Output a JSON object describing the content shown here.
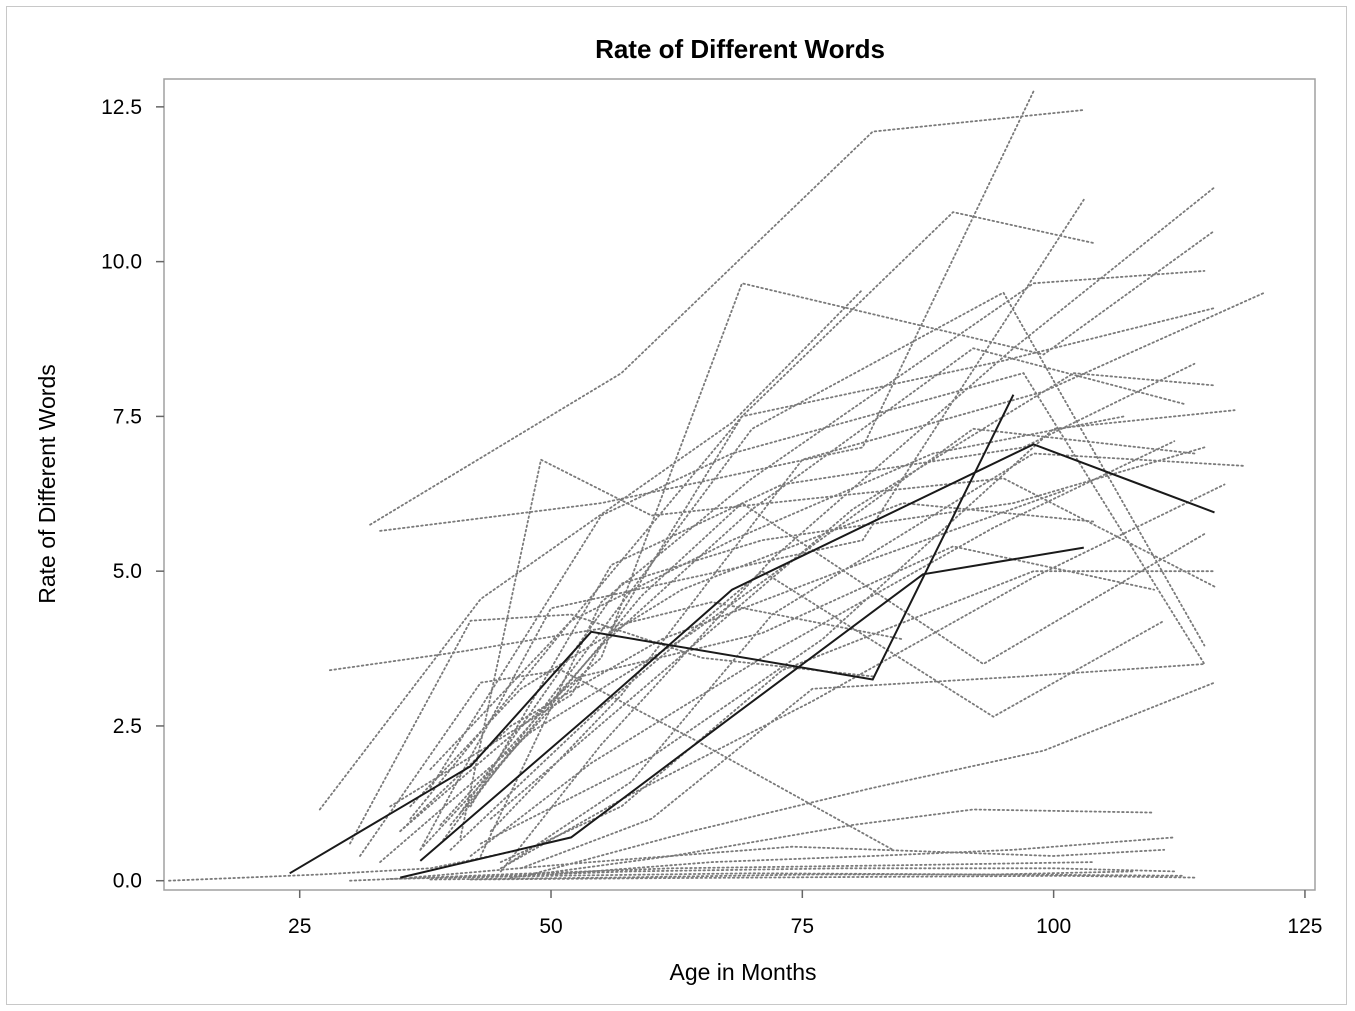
{
  "chart_data": {
    "type": "line",
    "title": "Rate of Different Words",
    "xlabel": "Age in Months",
    "ylabel": "Rate of Different Words",
    "xlim": [
      11.5,
      126
    ],
    "ylim": [
      -0.15,
      12.95
    ],
    "x_ticks": [
      "25",
      "50",
      "75",
      "100",
      "125"
    ],
    "x_tick_values": [
      25,
      50,
      75,
      100,
      125
    ],
    "y_ticks": [
      "0.0",
      "2.5",
      "5.0",
      "7.5",
      "10.0",
      "12.5"
    ],
    "y_tick_values": [
      0,
      2.5,
      5,
      7.5,
      10,
      12.5
    ],
    "grid": false,
    "legend": "none",
    "colors": {
      "highlighted": "#1a1a1a",
      "background": "#7a7a7a",
      "frame": "#a0a0a0"
    },
    "highlighted_series": [
      {
        "x": [
          24,
          42,
          54,
          82,
          96
        ],
        "y": [
          0.12,
          1.85,
          4.02,
          3.25,
          7.85
        ]
      },
      {
        "x": [
          37,
          54,
          68,
          98,
          116
        ],
        "y": [
          0.32,
          2.7,
          4.7,
          7.05,
          5.95
        ]
      },
      {
        "x": [
          35,
          52,
          68,
          87,
          103
        ],
        "y": [
          0.05,
          0.7,
          2.65,
          4.95,
          5.38
        ]
      }
    ],
    "background_series": [
      {
        "x": [
          12,
          27,
          38,
          47
        ],
        "y": [
          0.0,
          0.1,
          0.2,
          0.5
        ]
      },
      {
        "x": [
          27,
          43,
          68,
          81
        ],
        "y": [
          1.15,
          4.55,
          7.4,
          9.55
        ]
      },
      {
        "x": [
          32,
          57,
          82,
          103
        ],
        "y": [
          5.75,
          8.2,
          12.1,
          12.45
        ]
      },
      {
        "x": [
          33,
          55,
          81,
          98
        ],
        "y": [
          5.65,
          6.1,
          7.0,
          12.75
        ]
      },
      {
        "x": [
          34,
          52,
          69,
          95,
          116
        ],
        "y": [
          1.2,
          3.0,
          7.5,
          8.4,
          9.25
        ]
      },
      {
        "x": [
          35,
          55,
          69,
          99,
          116
        ],
        "y": [
          0.8,
          3.6,
          9.65,
          8.5,
          10.5
        ]
      },
      {
        "x": [
          36,
          52,
          69,
          90,
          104
        ],
        "y": [
          1.0,
          4.2,
          7.5,
          10.8,
          10.3
        ]
      },
      {
        "x": [
          37,
          50,
          81,
          103
        ],
        "y": [
          0.5,
          4.4,
          5.5,
          11.0
        ]
      },
      {
        "x": [
          38,
          55,
          68,
          97,
          115
        ],
        "y": [
          1.5,
          5.9,
          6.9,
          8.2,
          3.5
        ]
      },
      {
        "x": [
          39,
          53,
          70,
          95,
          115
        ],
        "y": [
          0.6,
          3.6,
          7.3,
          9.5,
          3.8
        ]
      },
      {
        "x": [
          40,
          59,
          69,
          93,
          115
        ],
        "y": [
          0.9,
          4.6,
          6.1,
          3.5,
          5.6
        ]
      },
      {
        "x": [
          41,
          49,
          60,
          95,
          116
        ],
        "y": [
          0.7,
          6.8,
          5.9,
          6.5,
          4.75
        ]
      },
      {
        "x": [
          42,
          56,
          73,
          97,
          114
        ],
        "y": [
          1.2,
          5.1,
          6.4,
          7.0,
          8.35
        ]
      },
      {
        "x": [
          43,
          55,
          70,
          98,
          115
        ],
        "y": [
          0.4,
          4.5,
          6.5,
          9.65,
          9.85
        ]
      },
      {
        "x": [
          44,
          57,
          75,
          99,
          121
        ],
        "y": [
          0.8,
          3.0,
          6.8,
          7.9,
          9.5
        ]
      },
      {
        "x": [
          45,
          55,
          72,
          96,
          116
        ],
        "y": [
          0.15,
          2.2,
          5.2,
          8.6,
          11.2
        ]
      },
      {
        "x": [
          46,
          58,
          72,
          98,
          119
        ],
        "y": [
          0.3,
          1.6,
          4.3,
          6.9,
          6.7
        ]
      },
      {
        "x": [
          28,
          41,
          56,
          66,
          85
        ],
        "y": [
          3.4,
          3.7,
          4.1,
          4.5,
          3.9
        ]
      },
      {
        "x": [
          30,
          42,
          52,
          65,
          82
        ],
        "y": [
          0.6,
          4.2,
          4.3,
          3.6,
          3.3
        ]
      },
      {
        "x": [
          31,
          43,
          51,
          64,
          84
        ],
        "y": [
          0.4,
          3.2,
          3.4,
          2.3,
          0.5
        ]
      },
      {
        "x": [
          40,
          55,
          71,
          94,
          111
        ],
        "y": [
          0.5,
          2.8,
          5.0,
          2.65,
          4.2
        ]
      },
      {
        "x": [
          45,
          57,
          73,
          98,
          116
        ],
        "y": [
          0.3,
          1.2,
          3.4,
          5.0,
          5.0
        ]
      },
      {
        "x": [
          47,
          60,
          76,
          97,
          115
        ],
        "y": [
          0.2,
          1.0,
          3.1,
          3.3,
          3.5
        ]
      },
      {
        "x": [
          48,
          64,
          82,
          99,
          116
        ],
        "y": [
          0.1,
          0.8,
          1.5,
          2.1,
          3.2
        ]
      },
      {
        "x": [
          46,
          62,
          80,
          92,
          110
        ],
        "y": [
          0.05,
          0.4,
          0.9,
          1.15,
          1.1
        ]
      },
      {
        "x": [
          50,
          66,
          82,
          96,
          112
        ],
        "y": [
          0.1,
          0.3,
          0.4,
          0.5,
          0.7
        ]
      },
      {
        "x": [
          36,
          54,
          74,
          100,
          111
        ],
        "y": [
          0.05,
          0.3,
          0.55,
          0.4,
          0.5
        ]
      },
      {
        "x": [
          38,
          56,
          76,
          96,
          113
        ],
        "y": [
          0.02,
          0.05,
          0.1,
          0.1,
          0.08
        ]
      },
      {
        "x": [
          40,
          58,
          79,
          100,
          112
        ],
        "y": [
          0.05,
          0.15,
          0.2,
          0.2,
          0.15
        ]
      },
      {
        "x": [
          34,
          50,
          70,
          94,
          108
        ],
        "y": [
          0.03,
          0.08,
          0.12,
          0.1,
          0.15
        ]
      },
      {
        "x": [
          30,
          45,
          62,
          85,
          104
        ],
        "y": [
          0.0,
          0.1,
          0.2,
          0.25,
          0.3
        ]
      },
      {
        "x": [
          42,
          60,
          80,
          101,
          114
        ],
        "y": [
          0.02,
          0.04,
          0.06,
          0.08,
          0.05
        ]
      },
      {
        "x": [
          37,
          53,
          71,
          90,
          110
        ],
        "y": [
          0.5,
          3.3,
          4.0,
          5.4,
          4.7
        ]
      },
      {
        "x": [
          39,
          55,
          70,
          92,
          113
        ],
        "y": [
          0.9,
          3.8,
          6.0,
          8.6,
          7.7
        ]
      },
      {
        "x": [
          41,
          57,
          71,
          96,
          115
        ],
        "y": [
          1.1,
          4.8,
          5.5,
          6.1,
          7.0
        ]
      },
      {
        "x": [
          33,
          48,
          64,
          92,
          114
        ],
        "y": [
          0.3,
          2.4,
          4.0,
          7.3,
          6.9
        ]
      },
      {
        "x": [
          43,
          60,
          77,
          100,
          118
        ],
        "y": [
          0.6,
          2.0,
          3.9,
          7.3,
          7.6
        ]
      },
      {
        "x": [
          44,
          62,
          80,
          102,
          116
        ],
        "y": [
          1.0,
          3.5,
          6.0,
          8.2,
          8.0
        ]
      },
      {
        "x": [
          36,
          47,
          63,
          85,
          104
        ],
        "y": [
          1.2,
          3.1,
          4.7,
          6.1,
          5.8
        ]
      },
      {
        "x": [
          38,
          52,
          68,
          88,
          107
        ],
        "y": [
          1.8,
          4.2,
          5.5,
          6.9,
          7.5
        ]
      },
      {
        "x": [
          35,
          46,
          61,
          82,
          101
        ],
        "y": [
          0.8,
          2.5,
          3.9,
          5.2,
          6.3
        ]
      },
      {
        "x": [
          42,
          54,
          71,
          94,
          112
        ],
        "y": [
          0.4,
          1.9,
          3.6,
          5.7,
          7.1
        ]
      },
      {
        "x": [
          45,
          58,
          76,
          98,
          117
        ],
        "y": [
          0.2,
          1.4,
          2.9,
          4.9,
          6.4
        ]
      }
    ]
  }
}
